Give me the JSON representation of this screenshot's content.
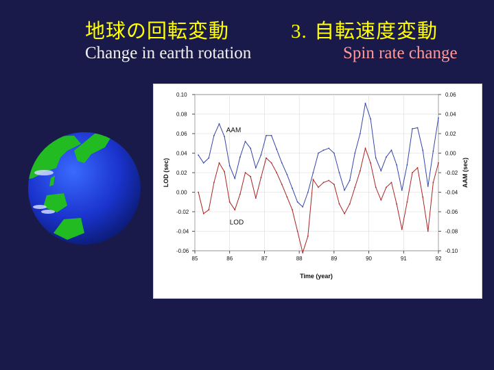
{
  "slide": {
    "title_left_jp": "地球の回転変動",
    "title_right_number": "3.",
    "title_right_jp": "自転速度変動",
    "subtitle_left_en": "Change in earth rotation",
    "subtitle_right_en": "Spin rate change"
  },
  "colors": {
    "background": "#1a1a4a",
    "title_jp": "#ffff00",
    "subtitle_right": "#ff9999",
    "aam_line": "#3344aa",
    "lod_line": "#aa2222"
  },
  "globe": {
    "icon": "earth-globe-icon"
  },
  "chart_data": {
    "type": "line",
    "xlabel": "Time (year)",
    "ylabel": "LOD (sec)",
    "y2label": "AAM (sec)",
    "xlim": [
      85,
      92
    ],
    "ylim": [
      -0.06,
      0.1
    ],
    "y2lim": [
      -0.1,
      0.06
    ],
    "x_ticks": [
      "85",
      "86",
      "87",
      "88",
      "89",
      "90",
      "91",
      "92"
    ],
    "y_ticks": [
      "0.10",
      "0.08",
      "0.06",
      "0.04",
      "0.02",
      "0.00",
      "-0.02",
      "-0.04",
      "-0.06"
    ],
    "y2_ticks": [
      "0.06",
      "0.04",
      "0.02",
      "0.00",
      "-0.02",
      "-0.04",
      "-0.06",
      "-0.08",
      "-0.10"
    ],
    "grid": true,
    "series": [
      {
        "name": "AAM",
        "axis": "right",
        "x": [
          85.1,
          85.25,
          85.4,
          85.55,
          85.7,
          85.85,
          86.0,
          86.15,
          86.3,
          86.45,
          86.6,
          86.75,
          86.9,
          87.05,
          87.2,
          87.35,
          87.5,
          87.65,
          87.8,
          87.95,
          88.1,
          88.25,
          88.4,
          88.55,
          88.7,
          88.85,
          89.0,
          89.15,
          89.3,
          89.45,
          89.6,
          89.75,
          89.9,
          90.05,
          90.2,
          90.35,
          90.5,
          90.65,
          90.8,
          90.95,
          91.1,
          91.25,
          91.4,
          91.55,
          91.7,
          91.85,
          92.0
        ],
        "values": [
          -0.002,
          -0.01,
          -0.005,
          0.018,
          0.03,
          0.017,
          -0.013,
          -0.026,
          -0.004,
          0.012,
          0.005,
          -0.015,
          -0.002,
          0.018,
          0.018,
          0.004,
          -0.01,
          -0.022,
          -0.036,
          -0.05,
          -0.055,
          -0.04,
          -0.02,
          0.0,
          0.003,
          0.005,
          0.0,
          -0.02,
          -0.038,
          -0.028,
          0.0,
          0.02,
          0.051,
          0.035,
          -0.005,
          -0.018,
          -0.004,
          0.003,
          -0.012,
          -0.038,
          -0.012,
          0.025,
          0.026,
          0.003,
          -0.034,
          0.002,
          0.036
        ]
      },
      {
        "name": "LOD",
        "axis": "left",
        "x": [
          85.1,
          85.25,
          85.4,
          85.55,
          85.7,
          85.85,
          86.0,
          86.15,
          86.3,
          86.45,
          86.6,
          86.75,
          86.9,
          87.05,
          87.2,
          87.35,
          87.5,
          87.65,
          87.8,
          87.95,
          88.1,
          88.25,
          88.4,
          88.55,
          88.7,
          88.85,
          89.0,
          89.15,
          89.3,
          89.45,
          89.6,
          89.75,
          89.9,
          90.05,
          90.2,
          90.35,
          90.5,
          90.65,
          90.8,
          90.95,
          91.1,
          91.25,
          91.4,
          91.55,
          91.7,
          91.85,
          92.0
        ],
        "values": [
          0.0,
          -0.022,
          -0.018,
          0.01,
          0.03,
          0.021,
          -0.01,
          -0.018,
          -0.002,
          0.02,
          0.016,
          -0.006,
          0.015,
          0.035,
          0.03,
          0.02,
          0.008,
          -0.005,
          -0.018,
          -0.04,
          -0.062,
          -0.045,
          0.013,
          0.005,
          0.01,
          0.012,
          0.008,
          -0.012,
          -0.022,
          -0.012,
          0.005,
          0.022,
          0.045,
          0.03,
          0.005,
          -0.008,
          0.005,
          0.01,
          -0.012,
          -0.038,
          -0.01,
          0.02,
          0.025,
          -0.005,
          -0.04,
          0.01,
          0.03
        ]
      }
    ]
  }
}
